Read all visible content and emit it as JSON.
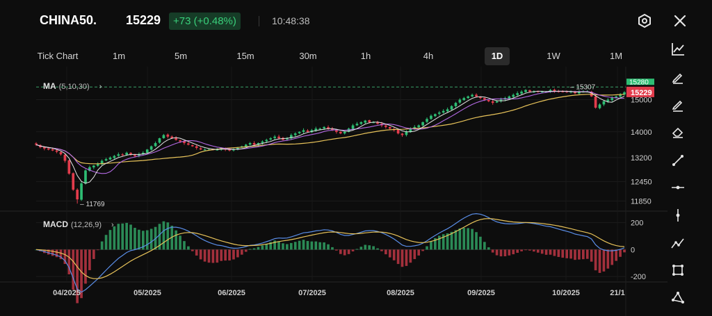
{
  "header": {
    "symbol": "CHINA50.",
    "price": "15229",
    "change": "+73 (+0.48%)",
    "time": "10:48:38",
    "settings_icon": "hexagon-settings-icon",
    "close_icon": "close-icon"
  },
  "timeframes": [
    {
      "label": "Tick Chart",
      "active": false
    },
    {
      "label": "1m",
      "active": false
    },
    {
      "label": "5m",
      "active": false
    },
    {
      "label": "15m",
      "active": false
    },
    {
      "label": "30m",
      "active": false
    },
    {
      "label": "1h",
      "active": false
    },
    {
      "label": "4h",
      "active": false
    },
    {
      "label": "1D",
      "active": true
    },
    {
      "label": "1W",
      "active": false
    },
    {
      "label": "1M",
      "active": false
    }
  ],
  "indicators": {
    "ma": {
      "name": "MA",
      "params": "(5,10,30)",
      "chevron": "›"
    },
    "macd": {
      "name": "MACD",
      "params": "(12,26,9)",
      "chevron": "›"
    }
  },
  "chart_data": [
    {
      "type": "candlestick",
      "title": "",
      "y_ticks": [
        15000,
        14000,
        13200,
        12450,
        11850
      ],
      "ylim": [
        11600,
        15550
      ],
      "x_labels": [
        "04/2025",
        "05/2025",
        "06/2025",
        "07/2025",
        "08/2025",
        "09/2025",
        "10/2025",
        "21/1"
      ],
      "current_price": 15229,
      "current_price_label": "15229",
      "upper_marker_label": "15280",
      "annotations": [
        {
          "label": "15307",
          "value": 15307
        },
        {
          "label": "11769",
          "value": 11769
        }
      ],
      "series_name_ma": "MA (5,10,30)",
      "closes": [
        13600,
        13520,
        13480,
        13450,
        13420,
        13380,
        13300,
        13100,
        12700,
        12200,
        11900,
        12400,
        12800,
        12900,
        12950,
        13000,
        13100,
        13150,
        13200,
        13250,
        13300,
        13280,
        13350,
        13300,
        13250,
        13300,
        13350,
        13450,
        13550,
        13650,
        13800,
        13900,
        13850,
        13800,
        13750,
        13700,
        13650,
        13600,
        13550,
        13500,
        13450,
        13450,
        13450,
        13450,
        13450,
        13500,
        13450,
        13420,
        13450,
        13500,
        13550,
        13600,
        13650,
        13600,
        13650,
        13700,
        13750,
        13800,
        13850,
        13800,
        13750,
        13800,
        13900,
        13950,
        14000,
        14050,
        14000,
        14050,
        14100,
        14100,
        14150,
        14100,
        14050,
        14000,
        13950,
        14000,
        14100,
        14200,
        14250,
        14300,
        14350,
        14300,
        14300,
        14250,
        14200,
        14150,
        14100,
        14050,
        13950,
        13900,
        14000,
        14100,
        14150,
        14200,
        14300,
        14400,
        14500,
        14550,
        14600,
        14650,
        14700,
        14800,
        14900,
        15000,
        15050,
        15100,
        15150,
        15100,
        15050,
        15000,
        14950,
        14900,
        14950,
        15000,
        15050,
        15100,
        15150,
        15200,
        15250,
        15300,
        15250,
        15250,
        15250,
        15250,
        15250,
        15300,
        15250,
        15250,
        15250,
        15250,
        15250,
        15200,
        15250,
        15250,
        15250,
        15100,
        14750,
        14850,
        14950,
        15000,
        15050,
        15100,
        15150,
        15229
      ]
    },
    {
      "type": "macd",
      "title": "",
      "y_ticks": [
        200,
        0,
        -200
      ],
      "ylim": [
        -230,
        260
      ]
    }
  ],
  "colors": {
    "up": "#2ebd73",
    "down": "#e23c4c",
    "ma5": "#e7e7e7",
    "ma10": "#b56ae6",
    "ma30": "#e8c35a",
    "macd_line": "#5a8ee8",
    "signal_line": "#e8c35a"
  },
  "toolbar": [
    "trend-line-chart-icon",
    "pencil-icon",
    "pencil-alt-icon",
    "eraser-icon",
    "ray-line-icon",
    "horizontal-line-icon",
    "vertical-line-icon",
    "polyline-icon",
    "rectangle-icon",
    "triangle-icon"
  ]
}
